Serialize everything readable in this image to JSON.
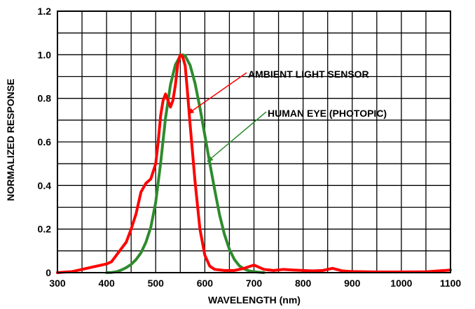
{
  "chart_data": {
    "type": "line",
    "title": "",
    "xlabel": "WAVELENGTH (nm)",
    "ylabel": "NORMALIZED RESPONSE",
    "xlim": [
      300,
      1100
    ],
    "ylim": [
      0,
      1.2
    ],
    "x_ticks": [
      "300",
      "400",
      "500",
      "600",
      "700",
      "800",
      "900",
      "1000",
      "1100"
    ],
    "y_ticks": [
      "0",
      "0.2",
      "0.4",
      "0.6",
      "0.8",
      "1.0",
      "1.2"
    ],
    "grid": true,
    "series": [
      {
        "name": "AMBIENT LIGHT SENSOR",
        "color": "#ff0000",
        "points": [
          [
            300,
            0.0
          ],
          [
            330,
            0.005
          ],
          [
            350,
            0.015
          ],
          [
            370,
            0.025
          ],
          [
            390,
            0.035
          ],
          [
            400,
            0.04
          ],
          [
            410,
            0.05
          ],
          [
            420,
            0.08
          ],
          [
            430,
            0.11
          ],
          [
            440,
            0.14
          ],
          [
            450,
            0.2
          ],
          [
            460,
            0.27
          ],
          [
            470,
            0.37
          ],
          [
            480,
            0.41
          ],
          [
            490,
            0.43
          ],
          [
            500,
            0.5
          ],
          [
            505,
            0.6
          ],
          [
            510,
            0.72
          ],
          [
            515,
            0.79
          ],
          [
            520,
            0.82
          ],
          [
            525,
            0.79
          ],
          [
            530,
            0.76
          ],
          [
            535,
            0.79
          ],
          [
            540,
            0.86
          ],
          [
            545,
            0.96
          ],
          [
            550,
            1.0
          ],
          [
            555,
            0.99
          ],
          [
            560,
            0.95
          ],
          [
            565,
            0.82
          ],
          [
            570,
            0.68
          ],
          [
            580,
            0.42
          ],
          [
            590,
            0.2
          ],
          [
            600,
            0.08
          ],
          [
            610,
            0.03
          ],
          [
            620,
            0.015
          ],
          [
            640,
            0.01
          ],
          [
            660,
            0.01
          ],
          [
            680,
            0.02
          ],
          [
            700,
            0.035
          ],
          [
            720,
            0.015
          ],
          [
            740,
            0.01
          ],
          [
            760,
            0.015
          ],
          [
            780,
            0.012
          ],
          [
            800,
            0.01
          ],
          [
            820,
            0.008
          ],
          [
            840,
            0.01
          ],
          [
            860,
            0.02
          ],
          [
            880,
            0.008
          ],
          [
            900,
            0.005
          ],
          [
            950,
            0.003
          ],
          [
            1000,
            0.003
          ],
          [
            1050,
            0.004
          ],
          [
            1100,
            0.012
          ]
        ]
      },
      {
        "name": "HUMAN EYE (PHOTOPIC)",
        "color": "#2e8b2e",
        "points": [
          [
            400,
            0.0
          ],
          [
            410,
            0.001
          ],
          [
            420,
            0.004
          ],
          [
            430,
            0.012
          ],
          [
            440,
            0.023
          ],
          [
            450,
            0.038
          ],
          [
            460,
            0.06
          ],
          [
            470,
            0.091
          ],
          [
            480,
            0.139
          ],
          [
            490,
            0.208
          ],
          [
            500,
            0.323
          ],
          [
            510,
            0.503
          ],
          [
            520,
            0.71
          ],
          [
            530,
            0.862
          ],
          [
            540,
            0.954
          ],
          [
            550,
            0.995
          ],
          [
            555,
            1.0
          ],
          [
            560,
            0.995
          ],
          [
            570,
            0.952
          ],
          [
            580,
            0.87
          ],
          [
            590,
            0.757
          ],
          [
            600,
            0.631
          ],
          [
            610,
            0.503
          ],
          [
            620,
            0.381
          ],
          [
            630,
            0.265
          ],
          [
            640,
            0.175
          ],
          [
            650,
            0.107
          ],
          [
            660,
            0.061
          ],
          [
            670,
            0.032
          ],
          [
            680,
            0.017
          ],
          [
            690,
            0.008
          ],
          [
            700,
            0.004
          ],
          [
            710,
            0.002
          ],
          [
            720,
            0.0
          ]
        ]
      }
    ],
    "annotations": [
      {
        "text": "AMBIENT LIGHT SENSOR",
        "points_to": [
          566,
          0.73
        ]
      },
      {
        "text": "HUMAN EYE (PHOTOPIC)",
        "points_to": [
          605,
          0.51
        ]
      }
    ]
  }
}
